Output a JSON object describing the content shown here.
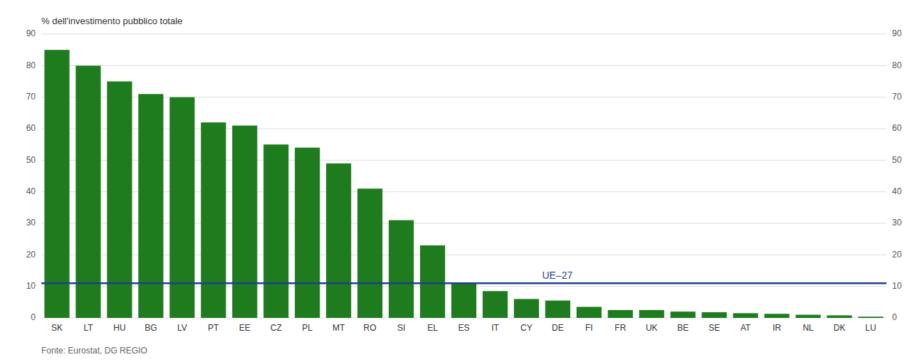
{
  "chart_data": {
    "type": "bar",
    "y_label": "% dell'investimento pubblico totale",
    "source": "Fonte: Eurostat, DG REGIO",
    "categories": [
      "SK",
      "LT",
      "HU",
      "BG",
      "LV",
      "PT",
      "EE",
      "CZ",
      "PL",
      "MT",
      "RO",
      "SI",
      "EL",
      "ES",
      "IT",
      "CY",
      "DE",
      "FI",
      "FR",
      "UK",
      "BE",
      "SE",
      "AT",
      "IR",
      "NL",
      "DK",
      "LU"
    ],
    "values": [
      85,
      80,
      75,
      71,
      70,
      62,
      61,
      55,
      54,
      49,
      41,
      31,
      23,
      11,
      8.5,
      6,
      5.5,
      3.5,
      2.5,
      2.5,
      2,
      1.8,
      1.5,
      1.3,
      1.0,
      0.8,
      0.4
    ],
    "color": "#1e7b1e",
    "reference_lines": [
      {
        "label": "UE–27",
        "value": 11,
        "color": "#1f3f8f"
      }
    ],
    "ylim": [
      0,
      90
    ],
    "yticks": [
      0,
      10,
      20,
      30,
      40,
      50,
      60,
      70,
      80,
      90
    ],
    "y2lim": [
      0,
      90
    ],
    "y2ticks": [
      0,
      10,
      20,
      30,
      40,
      50,
      60,
      70,
      80,
      90
    ],
    "grid": true
  }
}
